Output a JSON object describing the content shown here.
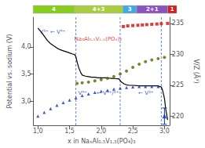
{
  "chart_data": {
    "type": "scatter",
    "xlabel": "x in NaₓAl₀.₅V₁.₅(PO₄)₃",
    "ylabel": "Potential vs. sodium (V)",
    "y2label": "V/Z (Å³)",
    "xlim": [
      0.93,
      3.08
    ],
    "xticks": [
      {
        "value": 1.0,
        "label": "1,0"
      },
      {
        "value": 1.5,
        "label": "1,5"
      },
      {
        "value": 2.0,
        "label": "2,0"
      },
      {
        "value": 2.5,
        "label": "2,5"
      },
      {
        "value": 3.0,
        "label": "3,0"
      }
    ],
    "ylim": [
      2.55,
      4.55
    ],
    "yticks": [
      {
        "value": 3.0,
        "label": "3,0"
      },
      {
        "value": 3.5,
        "label": "3,5"
      },
      {
        "value": 4.0,
        "label": "4,0"
      }
    ],
    "y2lim": [
      218.5,
      236.0
    ],
    "y2ticks": [
      220,
      225,
      230,
      235
    ],
    "grid": false,
    "series": [
      {
        "type": "line",
        "color": "#000000",
        "line_style": "solid",
        "x": [
          1.0,
          1.05,
          1.1,
          1.15,
          1.2,
          1.25,
          1.3,
          1.35,
          1.4,
          1.45,
          1.5,
          1.55,
          1.58,
          1.6,
          1.62,
          1.65,
          1.68,
          1.7,
          1.75,
          1.8,
          1.85,
          1.9,
          1.95,
          2.0,
          2.05,
          2.1,
          2.15,
          2.2,
          2.25,
          2.28,
          2.3,
          2.32,
          2.36,
          2.4,
          2.45,
          2.5,
          2.6,
          2.7,
          2.8,
          2.9,
          2.92,
          2.95,
          2.97,
          3.0,
          3.02,
          3.05
        ],
        "values": [
          4.35,
          4.28,
          4.2,
          4.12,
          4.06,
          4.02,
          3.98,
          3.95,
          3.93,
          3.91,
          3.89,
          3.87,
          3.86,
          3.82,
          3.72,
          3.6,
          3.52,
          3.48,
          3.46,
          3.45,
          3.44,
          3.44,
          3.43,
          3.43,
          3.43,
          3.43,
          3.42,
          3.42,
          3.41,
          3.41,
          3.38,
          3.35,
          3.32,
          3.3,
          3.29,
          3.29,
          3.28,
          3.28,
          3.28,
          3.28,
          3.27,
          3.26,
          3.2,
          3.05,
          2.85,
          2.65
        ]
      },
      {
        "type": "scatter",
        "color": "#cc1111",
        "marker": "square",
        "axis": "y2",
        "x": [
          2.35,
          2.42,
          2.5,
          2.58,
          2.65,
          2.72,
          2.8,
          2.88,
          2.95,
          3.05
        ],
        "values": [
          234.5,
          234.6,
          234.65,
          234.7,
          234.75,
          234.8,
          234.85,
          234.9,
          234.95,
          235.0
        ]
      },
      {
        "type": "scatter",
        "color": "#556600",
        "marker": "circle",
        "axis": "y2",
        "x": [
          1.62,
          1.7,
          1.8,
          1.9,
          2.0,
          2.1,
          2.2,
          2.3,
          2.4,
          2.5,
          2.6,
          2.7,
          2.8,
          2.9,
          3.0
        ],
        "values": [
          225.3,
          225.4,
          225.5,
          225.7,
          225.9,
          226.1,
          226.4,
          226.8,
          227.3,
          227.9,
          228.4,
          228.8,
          229.1,
          229.3,
          229.5
        ]
      },
      {
        "type": "scatter",
        "color": "#1133aa",
        "marker": "triangle",
        "x": [
          1.0,
          1.1,
          1.2,
          1.3,
          1.4,
          1.5,
          1.6,
          1.7,
          1.8,
          1.9,
          2.0,
          2.1,
          2.2,
          2.3,
          2.4,
          2.5,
          2.6,
          2.7,
          2.8,
          2.9
        ],
        "values": [
          2.72,
          2.79,
          2.86,
          2.92,
          2.97,
          3.02,
          3.06,
          3.1,
          3.13,
          3.16,
          3.18,
          3.2,
          3.22,
          3.24,
          3.25,
          3.26,
          3.27,
          3.27,
          3.27,
          3.27
        ]
      },
      {
        "type": "scatter",
        "color": "#1133aa",
        "marker": "triangle",
        "x": [
          3.0
        ],
        "values": [
          2.72
        ],
        "yerr": [
          0.15
        ]
      }
    ],
    "vlines": {
      "x": [
        1.6,
        2.3,
        2.95
      ],
      "color": "#6688cc",
      "line_style": "dashed"
    },
    "color_bar": {
      "label_color": "#ffffff",
      "segments": [
        {
          "x0": 1.0,
          "x1": 1.6,
          "color": "#88cc22",
          "label": "4"
        },
        {
          "x0": 1.6,
          "x1": 2.3,
          "color": "#aacc44",
          "label": "4+3"
        },
        {
          "x0": 2.3,
          "x1": 2.5,
          "color": "#44aadd",
          "label": "3"
        },
        {
          "x0": 2.5,
          "x1": 2.95,
          "color": "#8855bb",
          "label": "2+1"
        },
        {
          "x0": 2.95,
          "x1": 3.08,
          "color": "#cc2222",
          "label": "1"
        }
      ]
    },
    "annotations": [
      {
        "text": "V⁵⁺ ← V⁴⁺",
        "x": 1.02,
        "y": 4.28,
        "color": "#1133aa",
        "align": "left"
      },
      {
        "text": "Na₃Al₀.₅V₁.₅(PO₄)₃",
        "x": 1.95,
        "y": 4.15,
        "color": "#cc1111",
        "align": "center"
      },
      {
        "text": "V⁴⁺",
        "x": 1.63,
        "y": 3.14,
        "color": "#1133aa",
        "align": "left"
      },
      {
        "text": "← V⁴⁺/³⁺",
        "x": 1.92,
        "y": 3.14,
        "color": "#1133aa",
        "align": "left"
      },
      {
        "text": "← V³⁺",
        "x": 2.58,
        "y": 3.14,
        "color": "#1133aa",
        "align": "left"
      }
    ]
  }
}
